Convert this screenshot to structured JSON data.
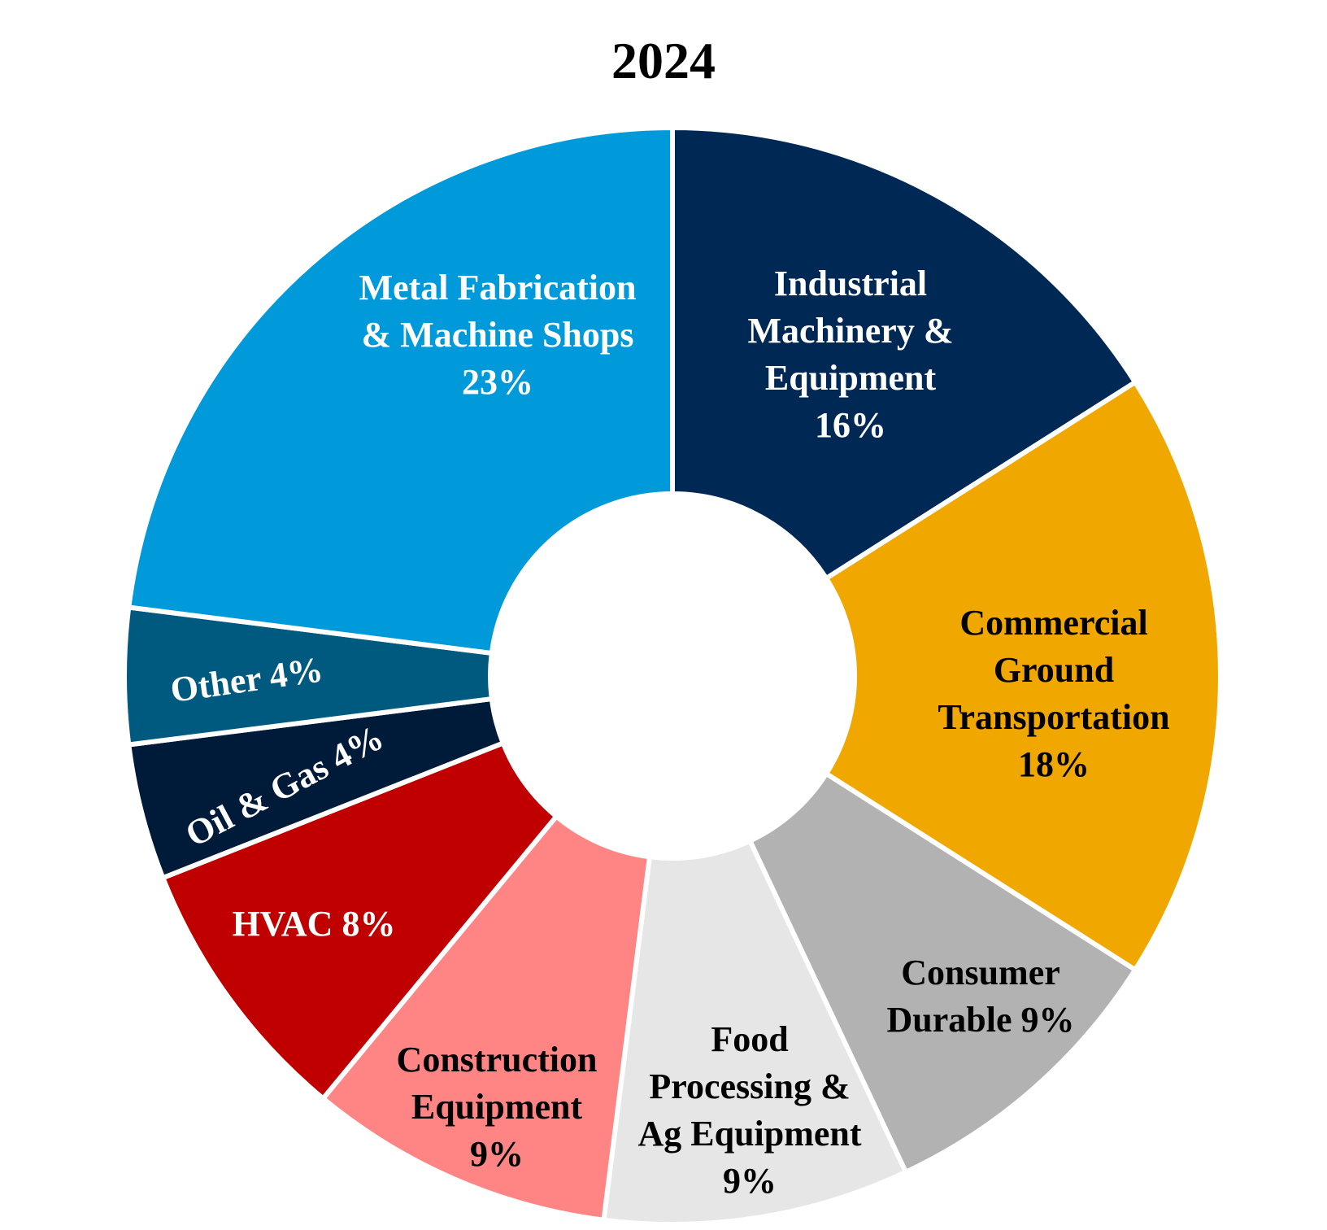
{
  "chart_data": {
    "type": "pie",
    "title": "2024",
    "donut": true,
    "legend": "none",
    "slices": [
      {
        "name": "Industrial Machinery & Equipment",
        "value": 16,
        "color": "#002855",
        "text_color": "#ffffff",
        "label_lines": [
          "Industrial",
          "Machinery &",
          "Equipment",
          "16%"
        ]
      },
      {
        "name": "Commercial Ground Transportation",
        "value": 18,
        "color": "#F0A800",
        "text_color": "#000000",
        "label_lines": [
          "Commercial",
          "Ground",
          "Transportation",
          "18%"
        ]
      },
      {
        "name": "Consumer Durable",
        "value": 9,
        "color": "#B1B2B1",
        "text_color": "#000000",
        "label_lines": [
          "Consumer",
          "Durable 9%"
        ]
      },
      {
        "name": "Food Processing & Ag Equipment",
        "value": 9,
        "color": "#E6E6E6",
        "text_color": "#000000",
        "label_lines": [
          "Food",
          "Processing &",
          "Ag Equipment",
          "9%"
        ]
      },
      {
        "name": "Construction Equipment",
        "value": 9,
        "color": "#FF8585",
        "text_color": "#000000",
        "label_lines": [
          "Construction",
          "Equipment",
          "9%"
        ]
      },
      {
        "name": "HVAC",
        "value": 8,
        "color": "#C00000",
        "text_color": "#ffffff",
        "label_lines": [
          "HVAC 8%"
        ]
      },
      {
        "name": "Oil & Gas",
        "value": 4,
        "color": "#001A3A",
        "text_color": "#ffffff",
        "label_lines": [
          "Oil & Gas 4%"
        ]
      },
      {
        "name": "Other",
        "value": 4,
        "color": "#005A80",
        "text_color": "#ffffff",
        "label_lines": [
          "Other 4%"
        ]
      },
      {
        "name": "Metal Fabrication & Machine Shops",
        "value": 23,
        "color": "#009ADB",
        "text_color": "#ffffff",
        "label_lines": [
          "Metal Fabrication",
          "& Machine Shops",
          "23%"
        ]
      }
    ]
  }
}
